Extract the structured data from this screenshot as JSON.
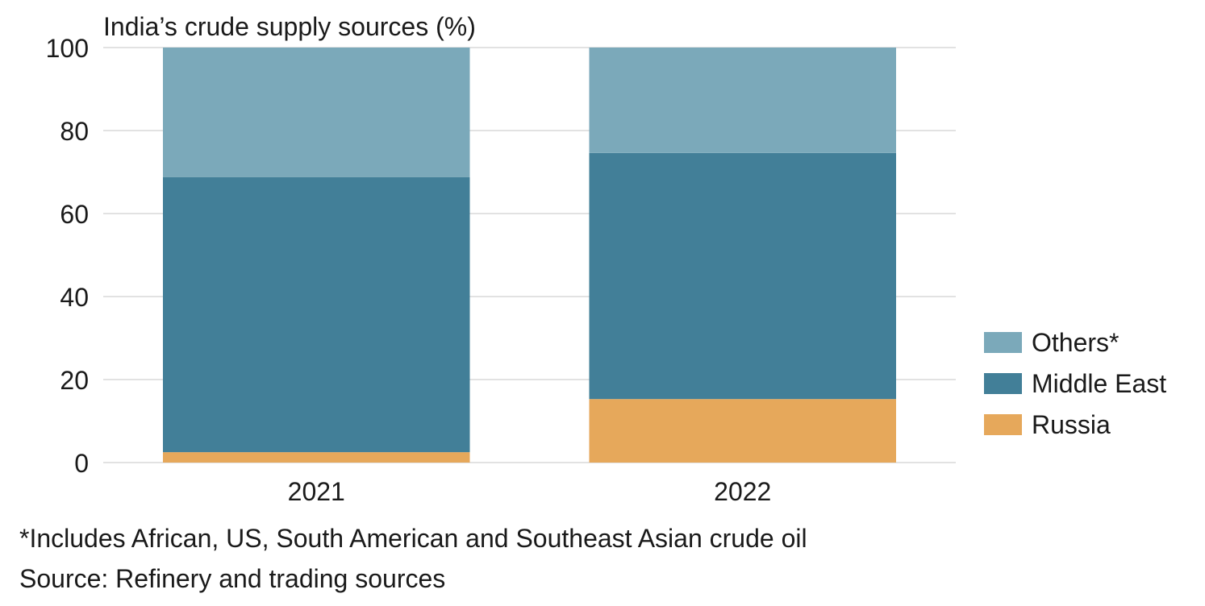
{
  "chart_data": {
    "type": "bar",
    "stacked": true,
    "title": "India’s crude supply sources (%)",
    "categories": [
      "2021",
      "2022"
    ],
    "series": [
      {
        "name": "Russia",
        "values": [
          2.5,
          15.3
        ],
        "color": "#E6A85B"
      },
      {
        "name": "Middle East",
        "values": [
          66.3,
          59.3
        ],
        "color": "#427F98"
      },
      {
        "name": "Others*",
        "values": [
          31.2,
          25.4
        ],
        "color": "#7BA9BA"
      }
    ],
    "legend_order": [
      "Others*",
      "Middle East",
      "Russia"
    ],
    "ylim": [
      0,
      100
    ],
    "yticks": [
      "0",
      "20",
      "40",
      "60",
      "80",
      "100"
    ],
    "xlabel": "",
    "ylabel": "",
    "legend_position": "right",
    "grid": true
  },
  "footnote": "*Includes African, US, South American and Southeast Asian crude oil",
  "source": "Source: Refinery and trading sources"
}
